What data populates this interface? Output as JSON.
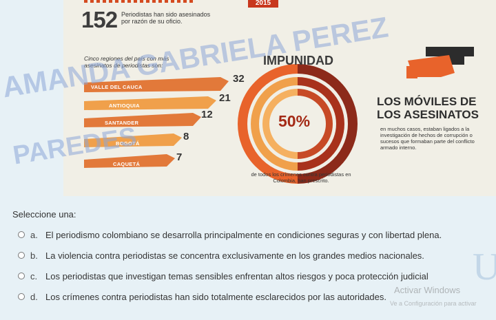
{
  "infographic": {
    "year": "2015",
    "headline_number": "152",
    "headline_text": "Periodistas han sido asesinados por razón de su oficio.",
    "regions_title": "Cinco regiones del país con más asesinatos de periodistas son:",
    "regions": [
      {
        "name": "VALLE DEL CAUCA",
        "value": 32
      },
      {
        "name": "ANTIOQUIA",
        "value": 21
      },
      {
        "name": "SANTANDER",
        "value": 12
      },
      {
        "name": "BOGOTÁ",
        "value": 8
      },
      {
        "name": "CAQUETÁ",
        "value": 7
      }
    ],
    "impunidad_title": "IMPUNIDAD",
    "impunidad_pct": "50%",
    "impunidad_note": "de todos los crímenes contra periodistas en Colombia, han prescrito.",
    "moviles_title_1": "LOS MÓVILES DE",
    "moviles_title_2": "LOS ASESINATOS",
    "moviles_text": "en muchos casos, estaban ligados a la investigación de hechos de corrupción o sucesos que formaban parte del conflicto armado interno.",
    "colors": {
      "accent": "#e8632b",
      "dark_red": "#8c2a1a",
      "bar": "#e2793a"
    }
  },
  "watermark": {
    "line1": "AMANDA GABRIELA PEREZ",
    "line2": "PAREDES"
  },
  "question": {
    "prompt": "Seleccione una:",
    "options": [
      {
        "letter": "a.",
        "text": "El periodismo colombiano se desarrolla principalmente en condiciones seguras y con libertad plena."
      },
      {
        "letter": "b.",
        "text": "La violencia contra periodistas se concentra exclusivamente en los grandes medios nacionales."
      },
      {
        "letter": "c.",
        "text": "Los periodistas que investigan temas sensibles enfrentan altos riesgos y poca protección judicial"
      },
      {
        "letter": "d.",
        "text": "Los crímenes contra periodistas han sido totalmente esclarecidos por las autoridades."
      }
    ]
  },
  "os_overlay": {
    "activate": "Activar Windows",
    "activate_sub": "Ve a Configuración para activar"
  }
}
